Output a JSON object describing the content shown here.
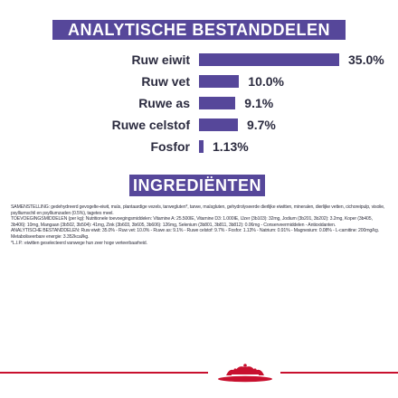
{
  "headers": {
    "analysis": "ANALYTISCHE BESTANDDELEN",
    "ingredients": "INGREDIËNTEN"
  },
  "analysis": [
    {
      "label": "Ruw eiwit",
      "value": "35.0%",
      "pct": 35.0
    },
    {
      "label": "Ruw vet",
      "value": "10.0%",
      "pct": 10.0
    },
    {
      "label": "Ruwe as",
      "value": "9.1%",
      "pct": 9.1
    },
    {
      "label": "Ruwe celstof",
      "value": "9.7%",
      "pct": 9.7
    },
    {
      "label": "Fosfor",
      "value": "1.13%",
      "pct": 1.13
    }
  ],
  "ingredients_text": [
    "SAMENSTELLING: gedehydreerd gevogelte-eiwit, maïs, plantaardige vezels, tarwegluten*, tarwe, maïsgluten, gehydrolyseerde dierlijke eiwitten, mineralen, dierlijke vetten, cichoreipulp, visolie, psylliumschil en psylliumzaden (0.5%), tagetes meel.",
    "TOEVOEGINGSMIDDELEN (per kg): Nutritionele toevoegingsmiddelen: Vitamine A: 25.500IE, Vitamine D3: 1.000IE, IJzer (3b103): 32mg, Jodium (3b201, 3b202): 3.2mg, Koper (3b405, 3b406): 10mg, Mangaan (3b502, 3b504): 41mg, Zink (3b603, 3b605, 3b606): 126mg, Selenium (3b801, 3b811, 3b812): 0.06mg - Conserveermiddelen - Antioxidanten.",
    "ANALYTISCHE BESTANDDELEN: Ruw eiwit: 35.0% - Ruw vet: 10.0% - Ruwe as: 9.1% - Ruwe celstof: 9.7% - Fosfor: 1.13% - Natrium: 0.91% - Magnesium: 0.08% - L-carnitine: 200mg/kg. Metaboliseerbare energie: 3.352kcal/kg.",
    "*L.I.P.: eiwitten geselecteerd vanwege hun zeer hoge verteerbaarheid."
  ],
  "colors": {
    "accent": "#56479a",
    "text": "#2b2b3f",
    "brand_red": "#c8102e"
  },
  "logo_icon": "royal-canin-crown-icon"
}
